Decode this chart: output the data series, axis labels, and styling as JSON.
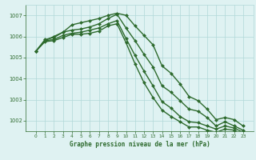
{
  "x": [
    0,
    1,
    2,
    3,
    4,
    5,
    6,
    7,
    8,
    9,
    10,
    11,
    12,
    13,
    14,
    15,
    16,
    17,
    18,
    19,
    20,
    21,
    22,
    23
  ],
  "series": [
    {
      "name": "line_high",
      "y": [
        1005.3,
        1005.8,
        1006.0,
        1006.2,
        1006.55,
        1006.65,
        1006.75,
        1006.85,
        1007.0,
        1007.1,
        1007.0,
        1006.5,
        1006.05,
        1005.6,
        1004.6,
        1004.25,
        1003.75,
        1003.15,
        1002.95,
        1002.55,
        1002.05,
        1002.15,
        1002.05,
        1001.75
      ],
      "color": "#2d6a2d",
      "linewidth": 1.0,
      "marker": "D",
      "markersize": 2.0
    },
    {
      "name": "line_mid1",
      "y": [
        1005.3,
        1005.85,
        1005.95,
        1006.2,
        1006.3,
        1006.35,
        1006.45,
        1006.6,
        1006.85,
        1007.05,
        1006.4,
        1005.8,
        1005.15,
        1004.55,
        1003.65,
        1003.35,
        1002.95,
        1002.55,
        1002.45,
        1002.15,
        1001.75,
        1001.95,
        1001.75,
        1001.55
      ],
      "color": "#2d6a2d",
      "linewidth": 1.0,
      "marker": "D",
      "markersize": 2.0
    },
    {
      "name": "line_mid2",
      "y": [
        1005.3,
        1005.8,
        1005.85,
        1006.05,
        1006.15,
        1006.2,
        1006.3,
        1006.4,
        1006.6,
        1006.75,
        1005.9,
        1005.1,
        1004.35,
        1003.65,
        1002.9,
        1002.6,
        1002.2,
        1001.95,
        1001.9,
        1001.75,
        1001.6,
        1001.75,
        1001.65,
        1001.45
      ],
      "color": "#2d6a2d",
      "linewidth": 1.0,
      "marker": "D",
      "markersize": 2.0
    },
    {
      "name": "line_low",
      "y": [
        1005.3,
        1005.75,
        1005.8,
        1005.95,
        1006.1,
        1006.1,
        1006.15,
        1006.25,
        1006.5,
        1006.6,
        1005.7,
        1004.7,
        1003.8,
        1003.1,
        1002.5,
        1002.2,
        1001.95,
        1001.7,
        1001.7,
        1001.55,
        1001.45,
        1001.6,
        1001.55,
        1001.35
      ],
      "color": "#2d6a2d",
      "linewidth": 1.0,
      "marker": "D",
      "markersize": 2.0
    }
  ],
  "ylim": [
    1001.5,
    1007.5
  ],
  "yticks": [
    1002,
    1003,
    1004,
    1005,
    1006,
    1007
  ],
  "xticks": [
    0,
    1,
    2,
    3,
    4,
    5,
    6,
    7,
    8,
    9,
    10,
    11,
    12,
    13,
    14,
    15,
    16,
    17,
    18,
    19,
    20,
    21,
    22,
    23
  ],
  "xlabel": "Graphe pression niveau de la mer (hPa)",
  "background_color": "#dff2f2",
  "grid_color": "#b0d8d8",
  "line_color": "#2d6a2d",
  "tick_color": "#2d6a2d",
  "label_color": "#2d6a2d",
  "fig_width": 3.2,
  "fig_height": 2.0,
  "dpi": 100
}
